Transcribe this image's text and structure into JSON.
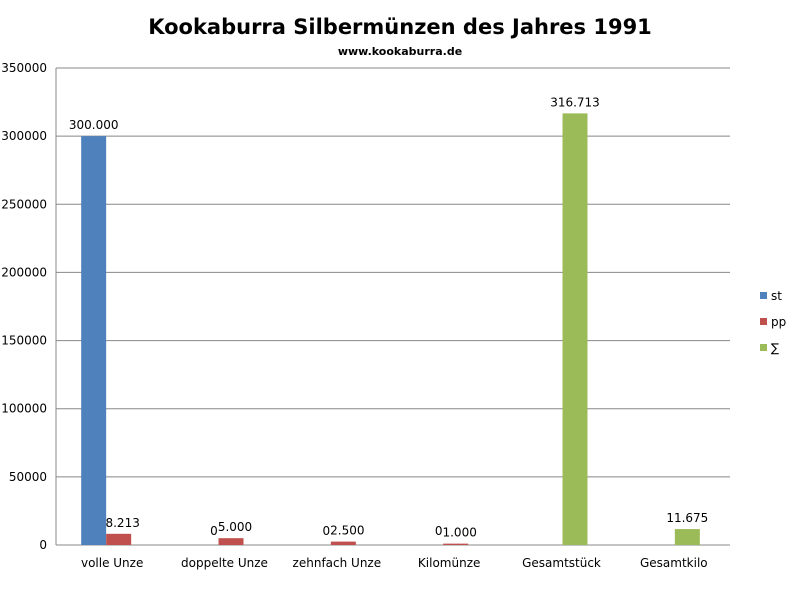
{
  "chart_data": {
    "type": "bar",
    "title": "Kookaburra Silbermünzen des Jahres 1991",
    "subtitle": "www.kookaburra.de",
    "xlabel": "",
    "ylabel": "",
    "ylim": [
      0,
      350000
    ],
    "yticks": [
      0,
      50000,
      100000,
      150000,
      200000,
      250000,
      300000,
      350000
    ],
    "yticklabels": [
      "0",
      "50000",
      "100000",
      "150000",
      "200000",
      "250000",
      "300000",
      "350000"
    ],
    "grid": true,
    "legend_position": "right",
    "categories": [
      "volle Unze",
      "doppelte Unze",
      "zehnfach Unze",
      "Kilomünze",
      "Gesamtstück",
      "Gesamtkilo"
    ],
    "series": [
      {
        "name": "st",
        "color": "#4f81bd",
        "values": [
          300000,
          0,
          0,
          0,
          null,
          null
        ],
        "labels": [
          "300.000",
          "0",
          "0",
          "0",
          "",
          ""
        ]
      },
      {
        "name": "pp",
        "color": "#c0504d",
        "values": [
          8213,
          5000,
          2500,
          1000,
          null,
          null
        ],
        "labels": [
          "8.213",
          "5.000",
          "2.500",
          "1.000",
          "",
          ""
        ]
      },
      {
        "name": "∑",
        "color": "#9bbb59",
        "values": [
          null,
          null,
          null,
          null,
          316713,
          11675
        ],
        "labels": [
          "",
          "",
          "",
          "",
          "316.713",
          "11.675"
        ]
      }
    ]
  }
}
